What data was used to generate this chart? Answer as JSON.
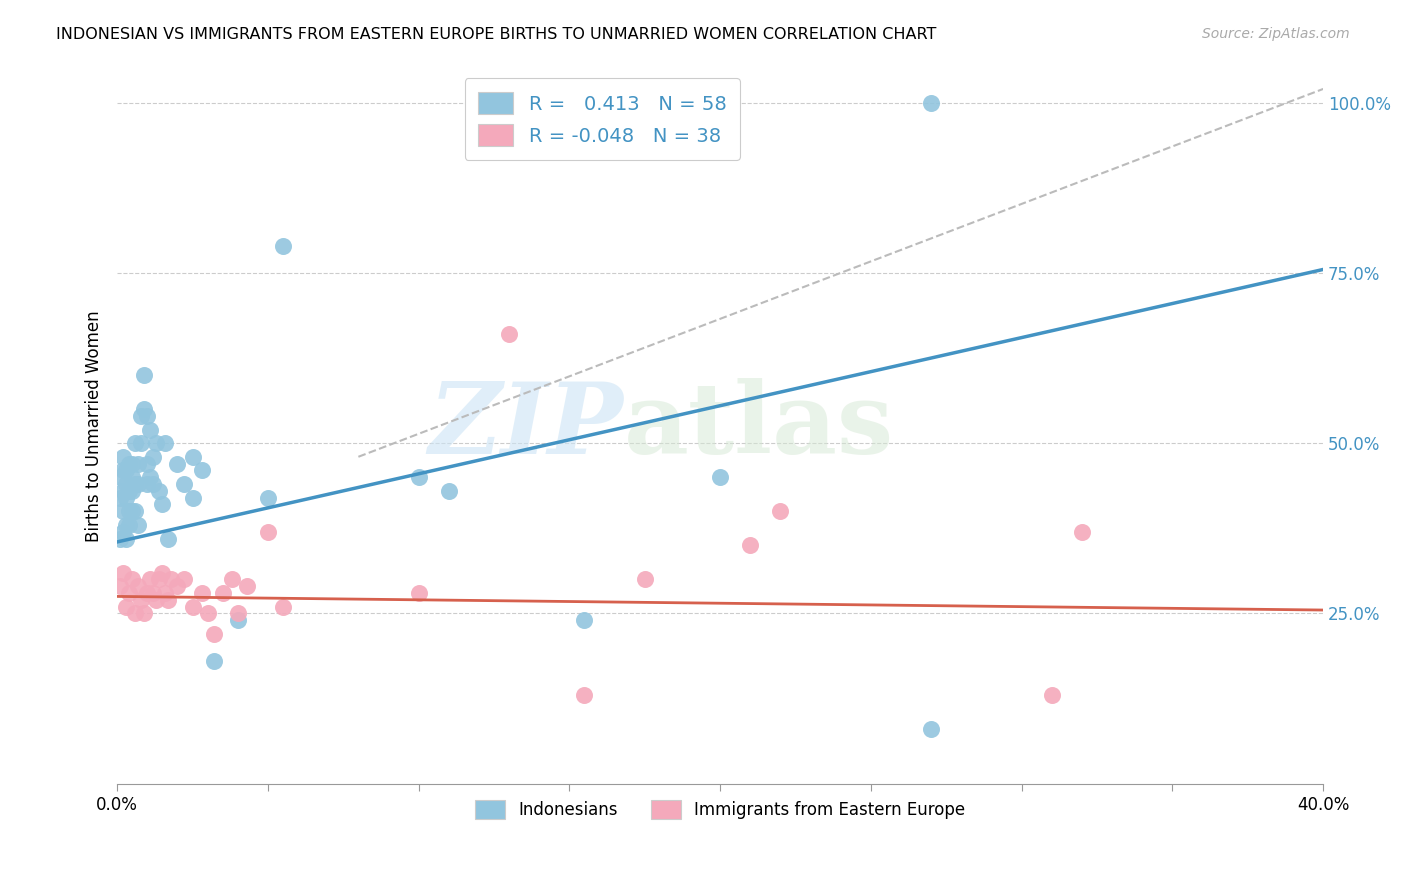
{
  "title": "INDONESIAN VS IMMIGRANTS FROM EASTERN EUROPE BIRTHS TO UNMARRIED WOMEN CORRELATION CHART",
  "source": "Source: ZipAtlas.com",
  "ylabel": "Births to Unmarried Women",
  "xmin": 0.0,
  "xmax": 0.4,
  "ymin": 0.0,
  "ymax": 1.05,
  "yticks": [
    0.25,
    0.5,
    0.75,
    1.0
  ],
  "ytick_labels": [
    "25.0%",
    "50.0%",
    "75.0%",
    "100.0%"
  ],
  "xticks": [
    0.0,
    0.05,
    0.1,
    0.15,
    0.2,
    0.25,
    0.3,
    0.35,
    0.4
  ],
  "xtick_labels": [
    "0.0%",
    "",
    "",
    "",
    "",
    "",
    "",
    "",
    "40.0%"
  ],
  "blue_color": "#92c5de",
  "pink_color": "#f4a9bb",
  "blue_line_color": "#4393c3",
  "pink_line_color": "#d6604d",
  "dashed_line_color": "#bbbbbb",
  "r_blue": 0.413,
  "n_blue": 58,
  "r_pink": -0.048,
  "n_pink": 38,
  "watermark_zip": "ZIP",
  "watermark_atlas": "atlas",
  "blue_line_x0": 0.0,
  "blue_line_y0": 0.355,
  "blue_line_x1": 0.4,
  "blue_line_y1": 0.755,
  "pink_line_x0": 0.0,
  "pink_line_y0": 0.275,
  "pink_line_x1": 0.4,
  "pink_line_y1": 0.255,
  "dash_line_x0": 0.08,
  "dash_line_y0": 0.48,
  "dash_line_x1": 0.4,
  "dash_line_y1": 1.02,
  "indonesian_x": [
    0.001,
    0.001,
    0.001,
    0.002,
    0.002,
    0.002,
    0.002,
    0.002,
    0.003,
    0.003,
    0.003,
    0.003,
    0.003,
    0.004,
    0.004,
    0.004,
    0.004,
    0.005,
    0.005,
    0.005,
    0.005,
    0.006,
    0.006,
    0.006,
    0.007,
    0.007,
    0.007,
    0.008,
    0.008,
    0.009,
    0.009,
    0.01,
    0.01,
    0.01,
    0.011,
    0.011,
    0.012,
    0.012,
    0.013,
    0.014,
    0.015,
    0.016,
    0.017,
    0.02,
    0.022,
    0.025,
    0.025,
    0.028,
    0.032,
    0.04,
    0.05,
    0.055,
    0.1,
    0.11,
    0.155,
    0.2,
    0.27,
    0.27
  ],
  "indonesian_y": [
    0.36,
    0.42,
    0.45,
    0.37,
    0.4,
    0.43,
    0.46,
    0.48,
    0.36,
    0.38,
    0.42,
    0.44,
    0.46,
    0.38,
    0.4,
    0.43,
    0.47,
    0.4,
    0.43,
    0.45,
    0.47,
    0.4,
    0.44,
    0.5,
    0.38,
    0.44,
    0.47,
    0.5,
    0.54,
    0.55,
    0.6,
    0.44,
    0.47,
    0.54,
    0.45,
    0.52,
    0.44,
    0.48,
    0.5,
    0.43,
    0.41,
    0.5,
    0.36,
    0.47,
    0.44,
    0.48,
    0.42,
    0.46,
    0.18,
    0.24,
    0.42,
    0.79,
    0.45,
    0.43,
    0.24,
    0.45,
    0.08,
    1.0
  ],
  "eastern_europe_x": [
    0.001,
    0.002,
    0.003,
    0.004,
    0.005,
    0.006,
    0.007,
    0.008,
    0.009,
    0.01,
    0.011,
    0.012,
    0.013,
    0.014,
    0.015,
    0.016,
    0.017,
    0.018,
    0.02,
    0.022,
    0.025,
    0.028,
    0.03,
    0.032,
    0.035,
    0.038,
    0.04,
    0.043,
    0.05,
    0.055,
    0.1,
    0.13,
    0.155,
    0.175,
    0.21,
    0.22,
    0.31,
    0.32
  ],
  "eastern_europe_y": [
    0.29,
    0.31,
    0.26,
    0.28,
    0.3,
    0.25,
    0.29,
    0.27,
    0.25,
    0.28,
    0.3,
    0.28,
    0.27,
    0.3,
    0.31,
    0.28,
    0.27,
    0.3,
    0.29,
    0.3,
    0.26,
    0.28,
    0.25,
    0.22,
    0.28,
    0.3,
    0.25,
    0.29,
    0.37,
    0.26,
    0.28,
    0.66,
    0.13,
    0.3,
    0.35,
    0.4,
    0.13,
    0.37
  ]
}
